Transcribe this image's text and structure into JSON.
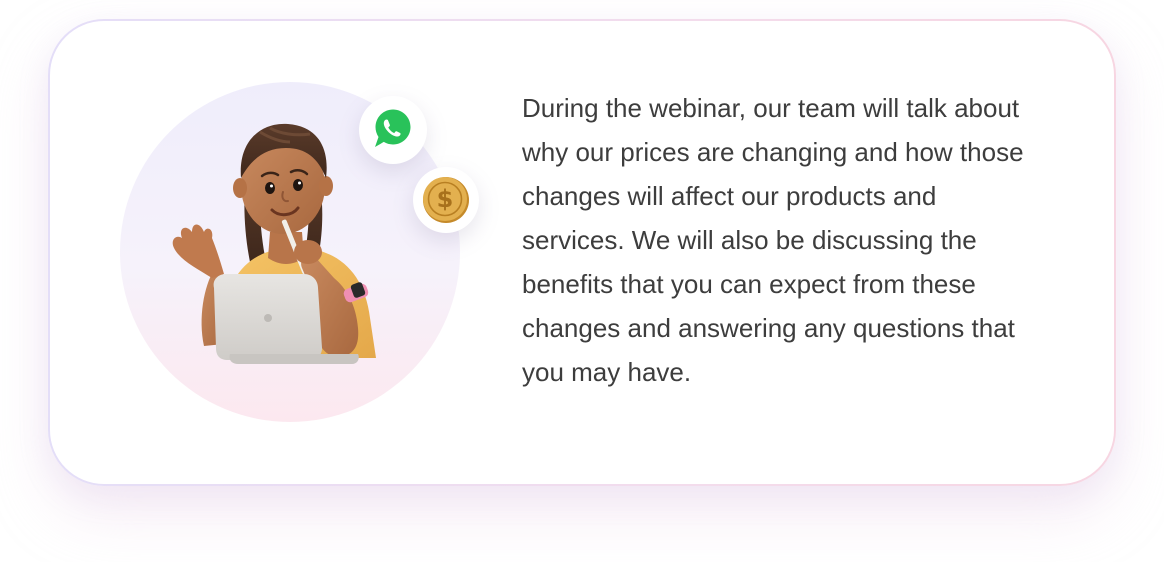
{
  "content": {
    "paragraph": "During the webinar, our team will talk about why our prices are changing and how those changes will affect our products and services. We will also be discussing the benefits that you can expect from these changes and answering any questions that you may have."
  },
  "illustration": {
    "subject": "person-with-laptop",
    "badges": [
      "whatsapp-icon",
      "dollar-coin-icon"
    ]
  },
  "colors": {
    "text": "#3d3d3d",
    "card_border_start": "#e4def8",
    "card_border_end": "#f7d6e2",
    "circle_top": "#efedfb",
    "circle_bottom": "#fce8ef",
    "whatsapp_green": "#29c25a",
    "coin_gold": "#d9a540"
  }
}
